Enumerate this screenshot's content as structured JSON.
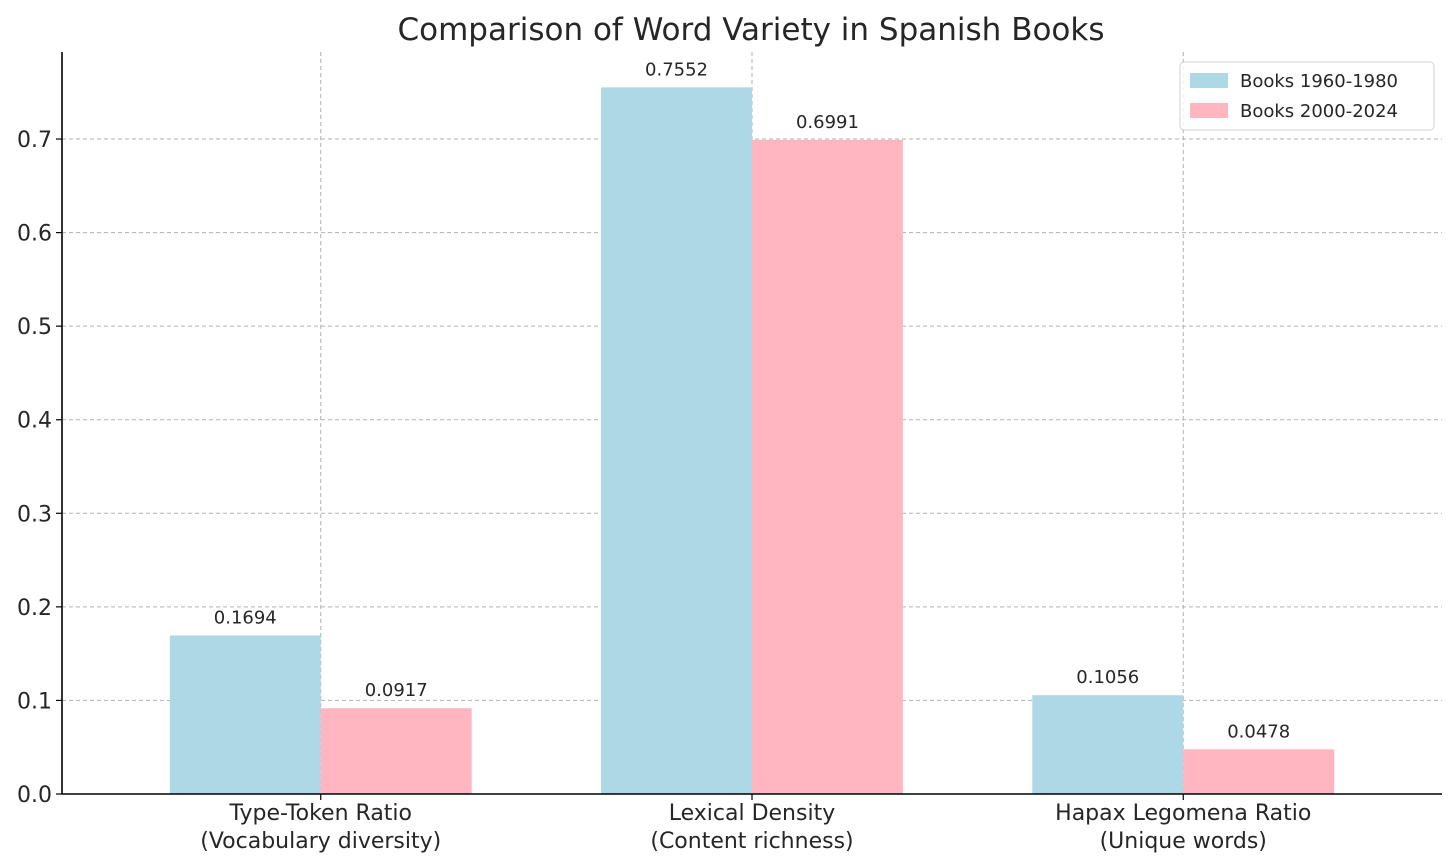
{
  "chart_data": {
    "type": "bar",
    "title": "Comparison of Word Variety in Spanish Books",
    "xlabel": "",
    "ylabel": "",
    "categories": [
      [
        "Type-Token Ratio",
        "(Vocabulary diversity)"
      ],
      [
        "Lexical Density",
        "(Content richness)"
      ],
      [
        "Hapax Legomena Ratio",
        "(Unique words)"
      ]
    ],
    "series": [
      {
        "name": "Books 1960-1980",
        "color": "#add8e6",
        "values": [
          0.1694,
          0.7552,
          0.1056
        ],
        "labels": [
          "0.1694",
          "0.7552",
          "0.1056"
        ]
      },
      {
        "name": "Books 2000-2024",
        "color": "#ffb6c1",
        "values": [
          0.0917,
          0.6991,
          0.0478
        ],
        "labels": [
          "0.0917",
          "0.6991",
          "0.0478"
        ]
      }
    ],
    "yticks": [
      "0.0",
      "0.1",
      "0.2",
      "0.3",
      "0.4",
      "0.5",
      "0.6",
      "0.7"
    ],
    "ylim": [
      0,
      0.793
    ],
    "grid": true,
    "legend_position": "top-right"
  }
}
